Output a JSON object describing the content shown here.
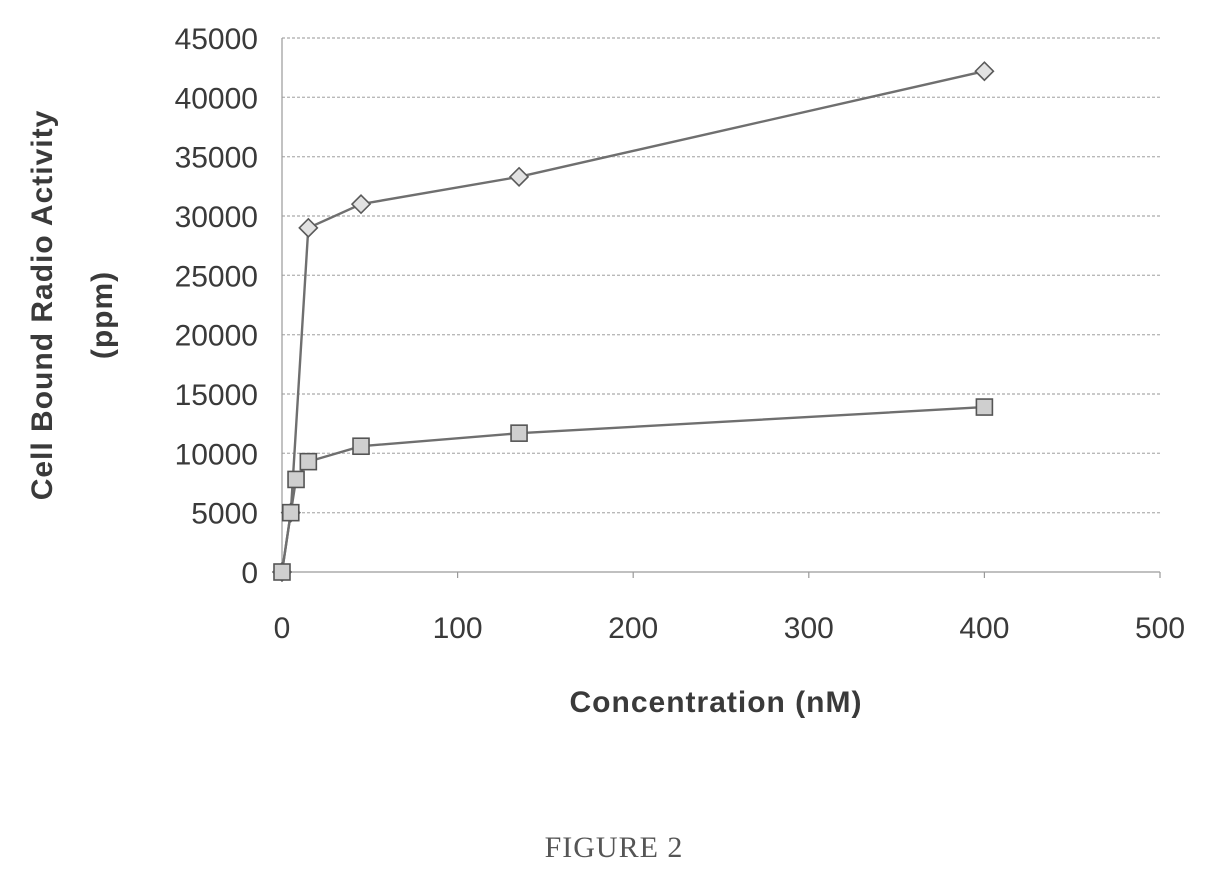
{
  "chart_data": {
    "type": "line",
    "title": "",
    "xlabel": "Concentration (nM)",
    "ylabel_lines": [
      "Cell Bound Radio Activity",
      "(ppm)"
    ],
    "xlim": [
      0,
      500
    ],
    "ylim": [
      0,
      45000
    ],
    "x_ticks": [
      "0",
      "100",
      "200",
      "300",
      "400",
      "500"
    ],
    "y_ticks": [
      "0",
      "5000",
      "10000",
      "15000",
      "20000",
      "25000",
      "30000",
      "35000",
      "40000",
      "45000"
    ],
    "grid": true,
    "legend": "none",
    "series": [
      {
        "marker": "diamond",
        "points": [
          {
            "x": 0,
            "y": 0
          },
          {
            "x": 5,
            "y": 5000
          },
          {
            "x": 15,
            "y": 29000
          },
          {
            "x": 45,
            "y": 31000
          },
          {
            "x": 135,
            "y": 33300
          },
          {
            "x": 400,
            "y": 42200
          }
        ]
      },
      {
        "marker": "square",
        "points": [
          {
            "x": 0,
            "y": 0
          },
          {
            "x": 5,
            "y": 5000
          },
          {
            "x": 8,
            "y": 7800
          },
          {
            "x": 15,
            "y": 9300
          },
          {
            "x": 45,
            "y": 10600
          },
          {
            "x": 135,
            "y": 11700
          },
          {
            "x": 400,
            "y": 13900
          }
        ]
      }
    ]
  },
  "caption": "FIGURE 2",
  "colors": {
    "grid": "#b9b9b9",
    "line": "#6f6f6f",
    "text": "#3a3a3a"
  }
}
